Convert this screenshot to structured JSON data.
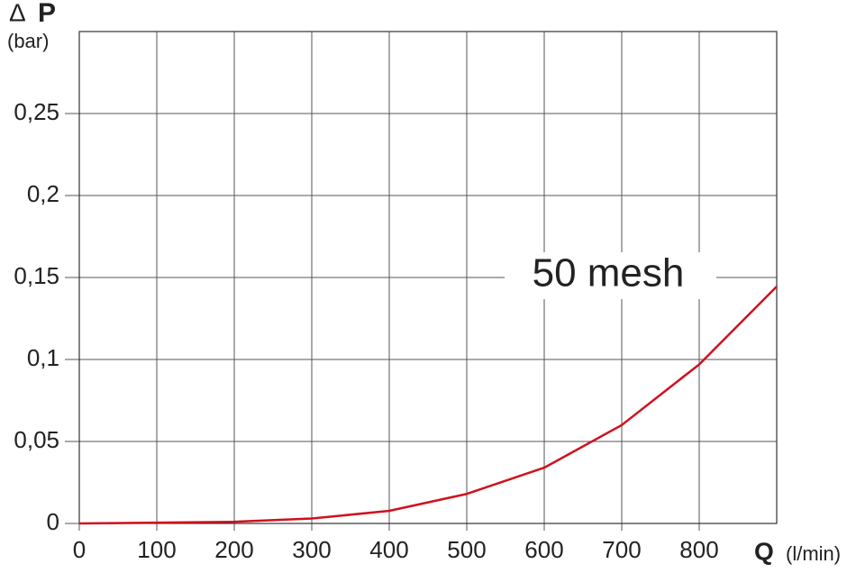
{
  "chart_data": {
    "type": "line",
    "y_label_symbol": "Δ",
    "y_label": "P",
    "y_unit": "(bar)",
    "x_label": "Q",
    "x_unit": "(l/min)",
    "x": [
      0,
      100,
      200,
      300,
      400,
      500,
      600,
      700,
      800,
      900
    ],
    "series": [
      {
        "name": "50 mesh",
        "color": "#d0101e",
        "values": [
          0,
          0.0005,
          0.001,
          0.003,
          0.0077,
          0.018,
          0.034,
          0.06,
          0.097,
          0.1445
        ]
      }
    ],
    "xlim": [
      0,
      900
    ],
    "xticks": [
      0,
      100,
      200,
      300,
      400,
      500,
      600,
      700,
      800
    ],
    "ylim": [
      0,
      0.3
    ],
    "yticks": [
      0,
      {
        "value": 0.05,
        "label": "0,05"
      },
      {
        "value": 0.1,
        "label": "0,1"
      },
      {
        "value": 0.15,
        "label": "0,15"
      },
      {
        "value": 0.2,
        "label": "0,2"
      },
      {
        "value": 0.25,
        "label": "0,25"
      }
    ],
    "grid": true
  }
}
